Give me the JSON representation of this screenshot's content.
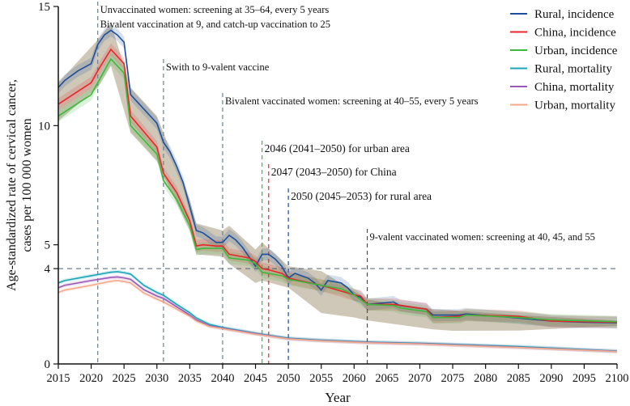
{
  "chart_data": {
    "type": "line",
    "xlabel": "Year",
    "ylabel_line1": "Age-standardized rate of cervical cancer,",
    "ylabel_line2": "cases per 100 000 women",
    "xlim": [
      2015,
      2100
    ],
    "ylim": [
      0,
      15
    ],
    "x_ticks": [
      "2015",
      "2020",
      "2025",
      "2030",
      "2035",
      "2040",
      "2045",
      "2050",
      "2055",
      "2060",
      "2065",
      "2070",
      "2075",
      "2080",
      "2085",
      "2090",
      "2095",
      "2100"
    ],
    "y_ticks": [
      "0",
      "4",
      "5",
      "10",
      "15"
    ],
    "legend_position": "top-right",
    "series": [
      {
        "name": "Rural, incidence",
        "color": "#1f4e9a",
        "x": [
          2015,
          2016,
          2018,
          2020,
          2021,
          2022,
          2023,
          2024,
          2025,
          2026,
          2028,
          2030,
          2031,
          2032,
          2033,
          2034,
          2035,
          2036,
          2037,
          2038,
          2039,
          2040,
          2041,
          2042,
          2043,
          2044,
          2045,
          2046,
          2047,
          2048,
          2049,
          2050,
          2051,
          2052,
          2053,
          2054,
          2055,
          2056,
          2058,
          2059,
          2060,
          2061,
          2062,
          2066,
          2067,
          2071,
          2072,
          2076,
          2077,
          2084,
          2090,
          2095,
          2100
        ],
        "y": [
          11.6,
          11.9,
          12.3,
          12.6,
          13.4,
          13.8,
          14.0,
          13.8,
          13.5,
          11.3,
          10.7,
          10.1,
          9.3,
          8.9,
          8.3,
          7.6,
          6.6,
          5.6,
          5.5,
          5.3,
          5.1,
          5.1,
          5.4,
          5.2,
          4.9,
          4.5,
          4.1,
          4.6,
          4.6,
          4.4,
          4.1,
          3.6,
          3.8,
          3.7,
          3.6,
          3.4,
          3.1,
          3.5,
          3.4,
          3.2,
          2.9,
          2.8,
          2.5,
          2.6,
          2.45,
          2.3,
          2.05,
          2.05,
          2.1,
          1.95,
          1.8,
          1.75,
          1.73
        ]
      },
      {
        "name": "China, incidence",
        "color": "#e8262a",
        "x": [
          2015,
          2020,
          2021,
          2023,
          2025,
          2026,
          2030,
          2031,
          2033,
          2035,
          2036,
          2037,
          2039,
          2040,
          2041,
          2044,
          2045,
          2046,
          2047,
          2049,
          2050,
          2055,
          2060,
          2061,
          2062,
          2066,
          2071,
          2072,
          2076,
          2077,
          2085,
          2090,
          2100
        ],
        "y": [
          10.9,
          11.8,
          12.3,
          13.2,
          12.6,
          10.4,
          9.1,
          8.0,
          7.2,
          6.0,
          4.95,
          5.0,
          4.95,
          4.95,
          4.6,
          4.45,
          4.3,
          4.0,
          3.95,
          3.8,
          3.6,
          3.3,
          2.9,
          2.85,
          2.5,
          2.5,
          2.3,
          1.95,
          2.0,
          2.05,
          2.0,
          1.8,
          1.75
        ]
      },
      {
        "name": "Urban, incidence",
        "color": "#3cb83c",
        "x": [
          2015,
          2020,
          2021,
          2023,
          2025,
          2026,
          2030,
          2031,
          2033,
          2035,
          2036,
          2037,
          2040,
          2041,
          2044,
          2045,
          2046,
          2047,
          2049,
          2050,
          2055,
          2058,
          2060,
          2062,
          2066,
          2067,
          2071,
          2072,
          2076,
          2077,
          2085,
          2090,
          2100
        ],
        "y": [
          10.4,
          11.3,
          11.8,
          12.8,
          12.2,
          10.0,
          8.8,
          7.7,
          6.9,
          5.8,
          4.8,
          4.85,
          4.85,
          4.45,
          4.35,
          4.2,
          3.85,
          3.8,
          3.7,
          3.55,
          3.3,
          3.15,
          2.9,
          2.5,
          2.45,
          2.35,
          2.2,
          1.95,
          1.95,
          2.05,
          1.95,
          1.85,
          1.77
        ]
      },
      {
        "name": "Rural, mortality",
        "color": "#1aa6b7",
        "x": [
          2015,
          2016,
          2020,
          2023,
          2024,
          2025,
          2026,
          2028,
          2030,
          2031,
          2033,
          2035,
          2036,
          2038,
          2040,
          2045,
          2050,
          2055,
          2062,
          2070,
          2085,
          2100
        ],
        "y": [
          3.4,
          3.5,
          3.7,
          3.85,
          3.87,
          3.83,
          3.77,
          3.3,
          3.0,
          2.88,
          2.5,
          2.15,
          1.93,
          1.66,
          1.53,
          1.29,
          1.08,
          1.0,
          0.92,
          0.87,
          0.73,
          0.54
        ]
      },
      {
        "name": "China, mortality",
        "color": "#9b59b6",
        "x": [
          2015,
          2016,
          2020,
          2023,
          2024,
          2025,
          2026,
          2028,
          2030,
          2031,
          2033,
          2035,
          2036,
          2038,
          2040,
          2045,
          2050,
          2055,
          2062,
          2070,
          2085,
          2100
        ],
        "y": [
          3.2,
          3.3,
          3.5,
          3.63,
          3.65,
          3.61,
          3.55,
          3.12,
          2.85,
          2.75,
          2.4,
          2.05,
          1.85,
          1.6,
          1.5,
          1.27,
          1.06,
          0.98,
          0.9,
          0.85,
          0.7,
          0.53
        ]
      },
      {
        "name": "Urban, mortality",
        "color": "#f4a88a",
        "x": [
          2015,
          2016,
          2020,
          2023,
          2024,
          2025,
          2026,
          2028,
          2030,
          2031,
          2033,
          2035,
          2036,
          2038,
          2040,
          2045,
          2050,
          2055,
          2062,
          2070,
          2085,
          2100
        ],
        "y": [
          3.0,
          3.1,
          3.3,
          3.47,
          3.5,
          3.46,
          3.4,
          2.98,
          2.72,
          2.6,
          2.3,
          2.0,
          1.8,
          1.57,
          1.48,
          1.25,
          1.05,
          0.97,
          0.89,
          0.84,
          0.69,
          0.52
        ]
      }
    ],
    "incidence_band": {
      "x": [
        2015,
        2021,
        2023,
        2026,
        2030,
        2035,
        2036,
        2040,
        2041,
        2045,
        2046,
        2050,
        2055,
        2060,
        2062,
        2072,
        2075,
        2085,
        2100
      ],
      "lower": [
        10.2,
        11.6,
        12.5,
        9.7,
        8.5,
        5.6,
        4.6,
        4.5,
        4.2,
        3.4,
        3.5,
        3.2,
        2.14,
        1.95,
        1.83,
        1.45,
        1.39,
        1.4,
        1.6
      ],
      "upper": [
        11.8,
        13.6,
        14.3,
        11.6,
        10.4,
        6.9,
        5.9,
        5.6,
        5.8,
        4.8,
        5.1,
        4.1,
        3.9,
        3.05,
        2.7,
        2.3,
        2.25,
        2.05,
        1.82
      ]
    },
    "threshold": {
      "y": 4
    },
    "annotations": [
      {
        "year": 2021,
        "text": "Unvaccinated women: screening at 35–64, every 5 years",
        "text2": "Bivalent vaccination at 9, and catch-up vaccination to 25",
        "color": "#111111",
        "line_color": "#6b7f8f"
      },
      {
        "year": 2031,
        "text": "Swith to 9-valent vaccine",
        "color": "#111111",
        "line_color": "#6b7f8f"
      },
      {
        "year": 2040,
        "text": "Bivalent vaccinated women: screening at 40–55, every 5 years",
        "color": "#111111",
        "line_color": "#6b7f8f"
      },
      {
        "year": 2046,
        "text": "2046 (2041–2050) for urban area",
        "color": "#3cb83c",
        "line_color": "#3cb83c"
      },
      {
        "year": 2047,
        "text": "2047 (2043–2050) for China",
        "color": "#e8262a",
        "line_color": "#e8262a"
      },
      {
        "year": 2050,
        "text": "2050 (2045–2053) for rural area",
        "color": "#1f4e9a",
        "line_color": "#1f4e9a"
      },
      {
        "year": 2062,
        "text": "9-valent vaccinated women: screening at 40, 45, and 55",
        "color": "#111111",
        "line_color": "#3f5366"
      }
    ]
  }
}
